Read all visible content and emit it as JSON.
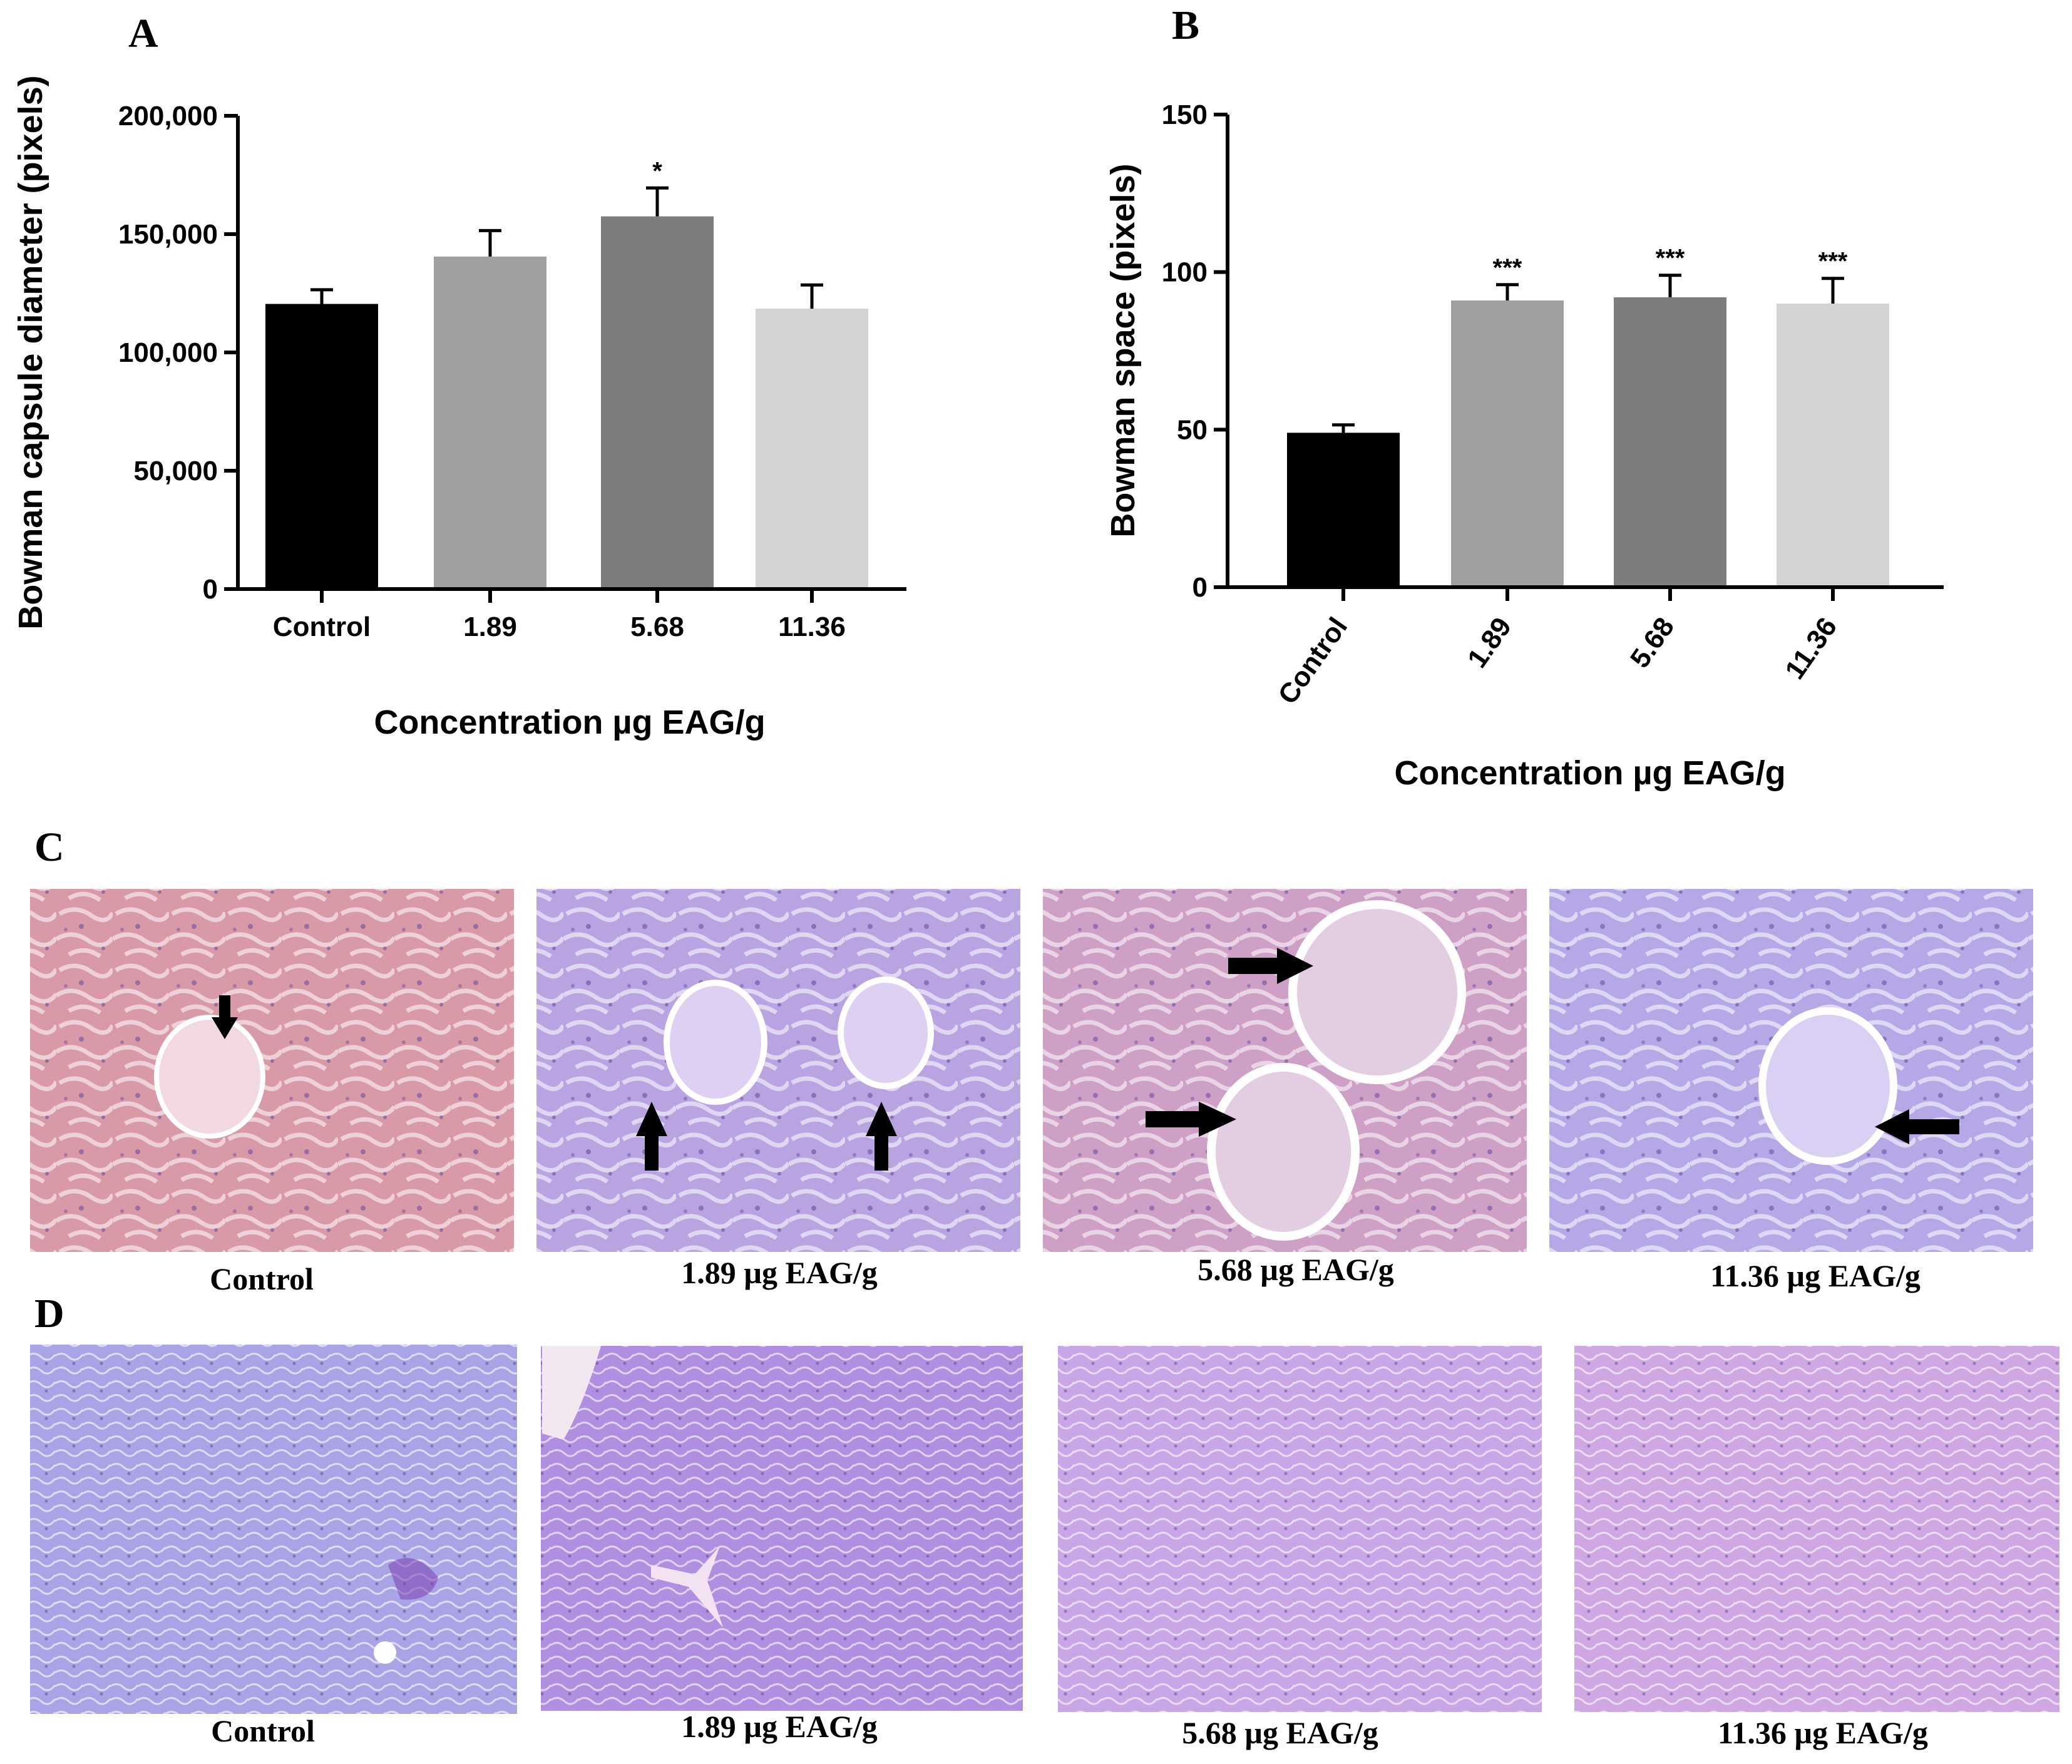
{
  "panel_labels": {
    "a": "A",
    "b": "B",
    "c": "C",
    "d": "D"
  },
  "chart_data": [
    {
      "type": "bar",
      "panel": "A",
      "categories": [
        "Control",
        "1.89",
        "5.68",
        "11.36"
      ],
      "values": [
        120500,
        140500,
        157500,
        118500
      ],
      "errors": [
        6000,
        11000,
        12000,
        10000
      ],
      "significance": [
        "",
        "",
        "*",
        ""
      ],
      "colors": [
        "#000000",
        "#a0a0a3",
        "#7d7d7d",
        "#d3d3d3"
      ],
      "title": "",
      "xlabel": "Concentration µg EAG/g",
      "ylabel": "Bowman capsule diameter (pixels)",
      "ylim": [
        0,
        200000
      ],
      "yticks": [
        "0",
        "50,000",
        "100,000",
        "150,000",
        "200,000"
      ],
      "grid": false
    },
    {
      "type": "bar",
      "panel": "B",
      "categories": [
        "Control",
        "1.89",
        "5.68",
        "11.36"
      ],
      "values": [
        49,
        91,
        92,
        90
      ],
      "errors": [
        2.5,
        5,
        7,
        8
      ],
      "significance": [
        "",
        "***",
        "***",
        "***"
      ],
      "colors": [
        "#000000",
        "#a0a0a3",
        "#7d7d7d",
        "#d3d3d3"
      ],
      "title": "",
      "xlabel": "Concentration µg EAG/g",
      "ylabel": "Bowman space (pixels)",
      "ylim": [
        0,
        150
      ],
      "yticks": [
        "0",
        "50",
        "100",
        "150"
      ],
      "grid": false
    }
  ],
  "micrographs": {
    "row_c": {
      "captions": [
        "Control",
        "1.89 µg EAG/g",
        "5.68 µg EAG/g",
        "11.36 µg EAG/g"
      ],
      "stain_colors": [
        "#d99aa8",
        "#b9a3e0",
        "#cfa0c6",
        "#b6a8e6"
      ]
    },
    "row_d": {
      "captions": [
        "Control",
        "1.89 µg EAG/g",
        "5.68 µg EAG/g",
        "11.36 µg EAG/g"
      ],
      "stain_colors": [
        "#a9a4e6",
        "#b08fe0",
        "#c9a6e6",
        "#cfa7e2"
      ]
    }
  }
}
